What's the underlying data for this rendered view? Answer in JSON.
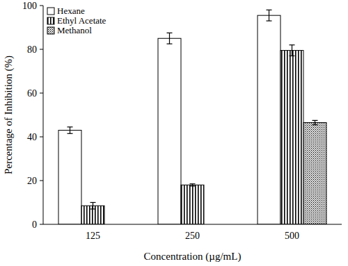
{
  "chart_data": {
    "type": "bar",
    "x_label": "Concentration (µg/mL)",
    "y_label": "Percentage of Inhibition (%)",
    "categories": [
      "125",
      "250",
      "500"
    ],
    "series": [
      {
        "name": "Hexane",
        "color": "#ffffff",
        "values": [
          43,
          85,
          95.5
        ],
        "errors": [
          1.5,
          2.5,
          2.5
        ]
      },
      {
        "name": "Ethyl Acetate",
        "color": "#000000",
        "values": [
          8.5,
          18,
          79.5
        ],
        "errors": [
          1.5,
          0.5,
          2.5
        ]
      },
      {
        "name": "Methanol",
        "color": "#000000",
        "values": [
          null,
          null,
          46.5
        ],
        "errors": [
          null,
          null,
          1
        ]
      }
    ],
    "ylim": [
      0,
      100
    ],
    "yticks": [
      0,
      20,
      40,
      60,
      80,
      100
    ],
    "grid": false,
    "legend": "upper-left"
  }
}
